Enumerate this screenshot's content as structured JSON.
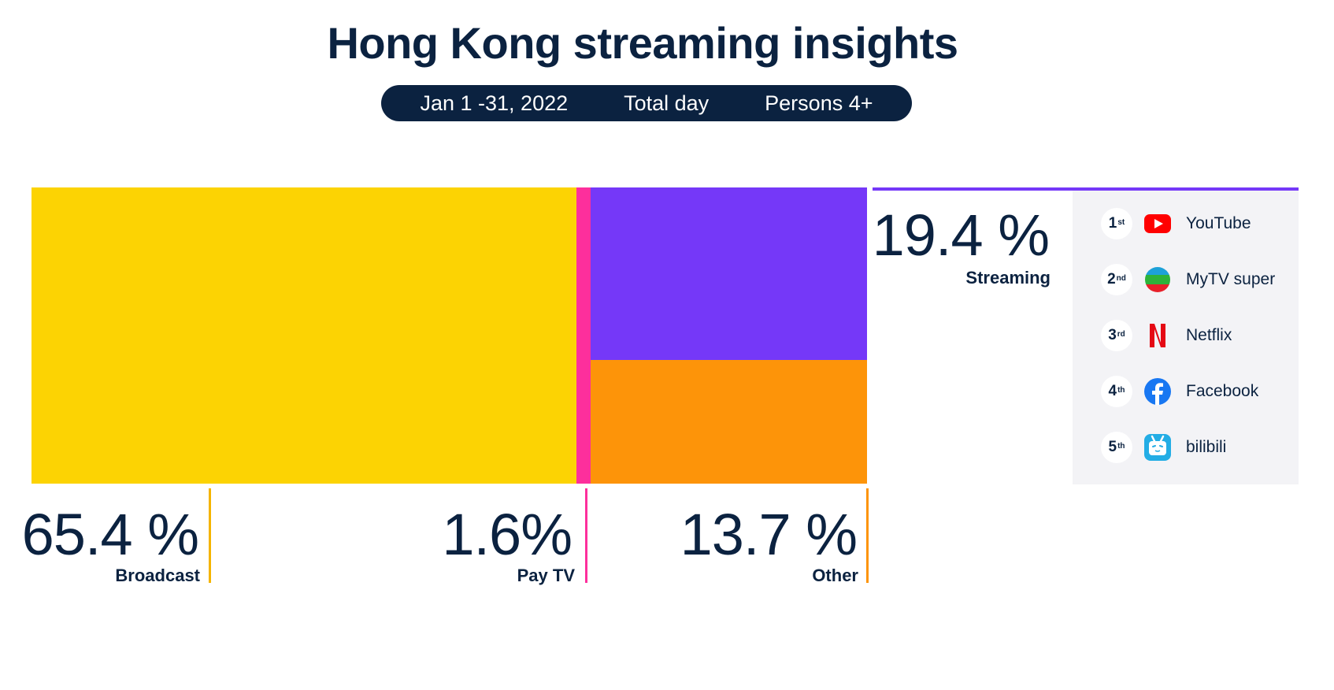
{
  "title": "Hong Kong streaming insights",
  "filters": {
    "date": "Jan 1 -31, 2022",
    "daypart": "Total day",
    "audience": "Persons 4+"
  },
  "chart_data": {
    "type": "treemap",
    "title": "Hong Kong streaming insights",
    "unit": "%",
    "segments": [
      {
        "name": "Broadcast",
        "value": 65.4,
        "value_label": "65.4 %",
        "color": "#fcd303"
      },
      {
        "name": "Pay TV",
        "value": 1.6,
        "value_label": "1.6%",
        "color": "#fd2f9c"
      },
      {
        "name": "Streaming",
        "value": 19.4,
        "value_label": "19.4 %",
        "color": "#7538f8"
      },
      {
        "name": "Other",
        "value": 13.7,
        "value_label": "13.7 %",
        "color": "#fd9409"
      }
    ]
  },
  "streaming_ranking": [
    {
      "rank": "1",
      "suffix": "st",
      "name": "YouTube",
      "icon": "youtube-icon"
    },
    {
      "rank": "2",
      "suffix": "nd",
      "name": "MyTV super",
      "icon": "mytv-super-icon"
    },
    {
      "rank": "3",
      "suffix": "rd",
      "name": "Netflix",
      "icon": "netflix-icon"
    },
    {
      "rank": "4",
      "suffix": "th",
      "name": "Facebook",
      "icon": "facebook-icon"
    },
    {
      "rank": "5",
      "suffix": "th",
      "name": "bilibili",
      "icon": "bilibili-icon"
    }
  ]
}
